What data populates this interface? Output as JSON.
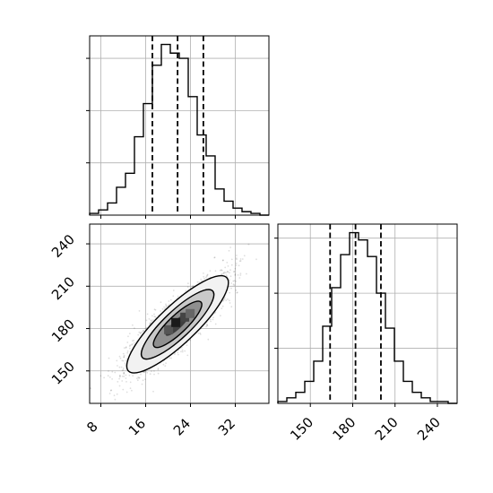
{
  "chart_data": [
    {
      "type": "histogram",
      "panel": "top-left",
      "variable": "x",
      "xlim": [
        6,
        38
      ],
      "bin_edges": [
        6,
        7.6,
        9.2,
        10.8,
        12.4,
        14.0,
        15.6,
        17.2,
        18.8,
        20.4,
        22.0,
        23.6,
        25.2,
        26.8,
        28.4,
        30.0,
        31.6,
        33.2,
        34.8,
        36.4,
        38.0
      ],
      "counts": [
        1,
        3,
        7,
        16,
        24,
        45,
        64,
        86,
        98,
        93,
        90,
        68,
        46,
        34,
        15,
        8,
        4,
        2,
        1,
        0
      ],
      "quantile_lines": [
        17.2,
        21.7,
        26.3
      ],
      "y_tick_labels_shown": false,
      "grid": true
    },
    {
      "type": "scatter-density",
      "panel": "bottom-left",
      "x_variable": "x",
      "y_variable": "y",
      "xlim": [
        6,
        38
      ],
      "ylim": [
        127,
        254
      ],
      "x_ticks": [
        8,
        16,
        24,
        32
      ],
      "y_ticks": [
        150,
        180,
        210,
        240
      ],
      "center": [
        21.7,
        183
      ],
      "contour_levels": 4,
      "grid": true
    },
    {
      "type": "histogram",
      "panel": "bottom-right",
      "variable": "y",
      "xlim": [
        127,
        254
      ],
      "x_ticks": [
        150,
        180,
        210,
        240
      ],
      "bin_edges": [
        127,
        133.35,
        139.7,
        146.05,
        152.4,
        158.75,
        165.1,
        171.45,
        177.8,
        184.15,
        190.5,
        196.85,
        203.2,
        209.55,
        215.9,
        222.25,
        228.6,
        234.95,
        241.3,
        247.65,
        254
      ],
      "counts": [
        1,
        3,
        6,
        12,
        23,
        42,
        63,
        81,
        93,
        89,
        80,
        60,
        41,
        23,
        12,
        6,
        3,
        1,
        1,
        0
      ],
      "quantile_lines": [
        164,
        182,
        200
      ],
      "y_tick_labels_shown": false,
      "grid": true
    }
  ]
}
